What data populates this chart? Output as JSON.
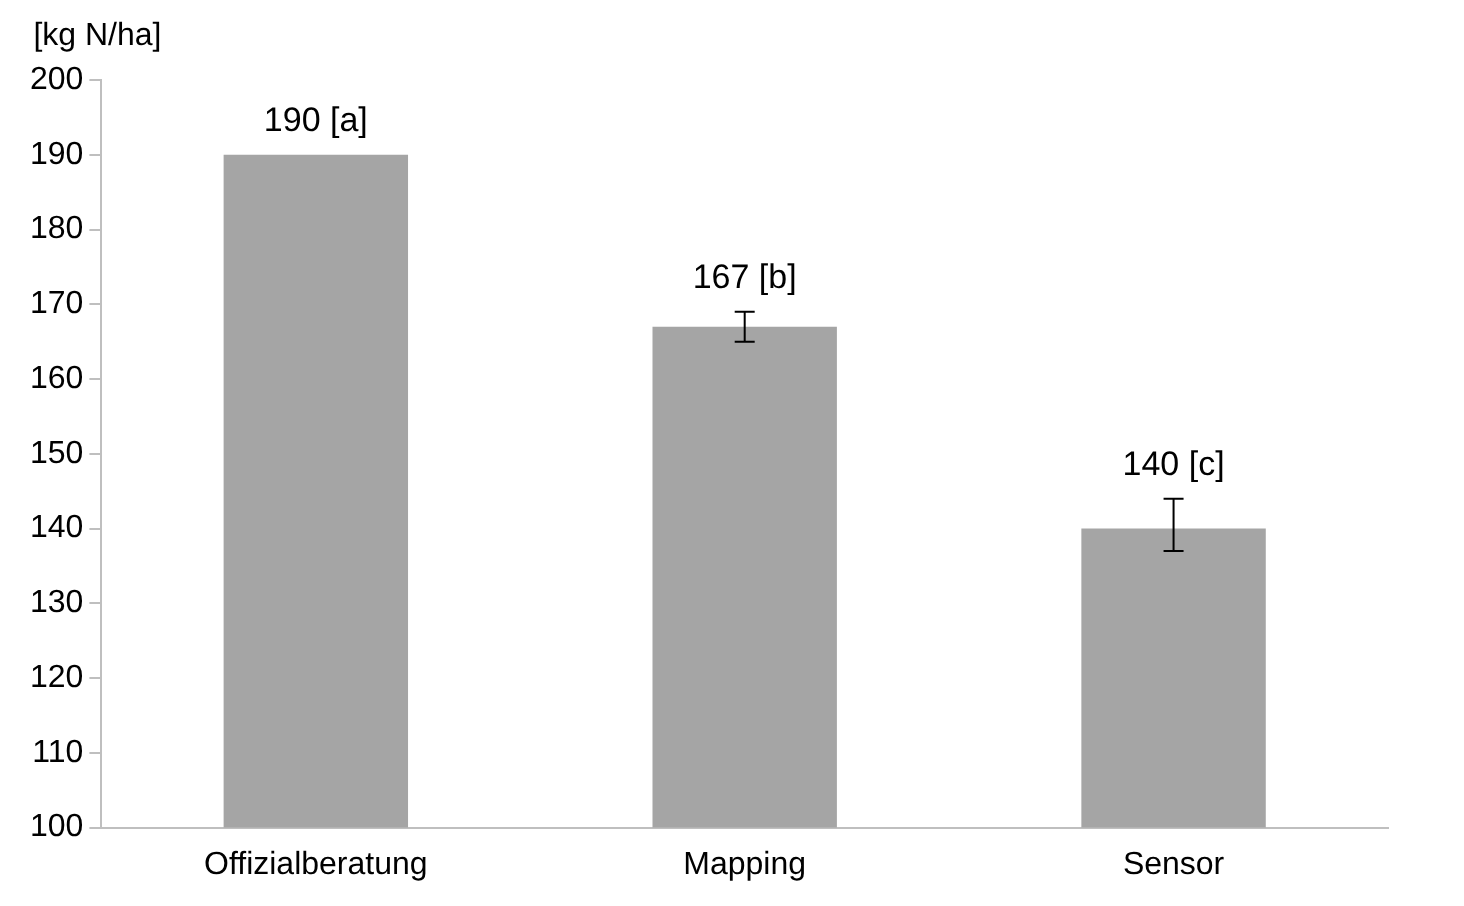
{
  "chart_data": {
    "type": "bar",
    "ylabel": "[kg N/ha]",
    "categories": [
      "Offizialberatung",
      "Mapping",
      "Sensor"
    ],
    "values": [
      190,
      167,
      140
    ],
    "color": "#a5a5a5",
    "errors": [
      null,
      [
        165,
        169
      ],
      [
        137,
        144
      ]
    ],
    "value_labels": [
      "190 [a]",
      "167 [b]",
      "140 [c]"
    ],
    "ylim": [
      100,
      200
    ],
    "yticks": [
      100,
      110,
      120,
      130,
      140,
      150,
      160,
      170,
      180,
      190,
      200
    ],
    "grid": false,
    "legend": false
  }
}
